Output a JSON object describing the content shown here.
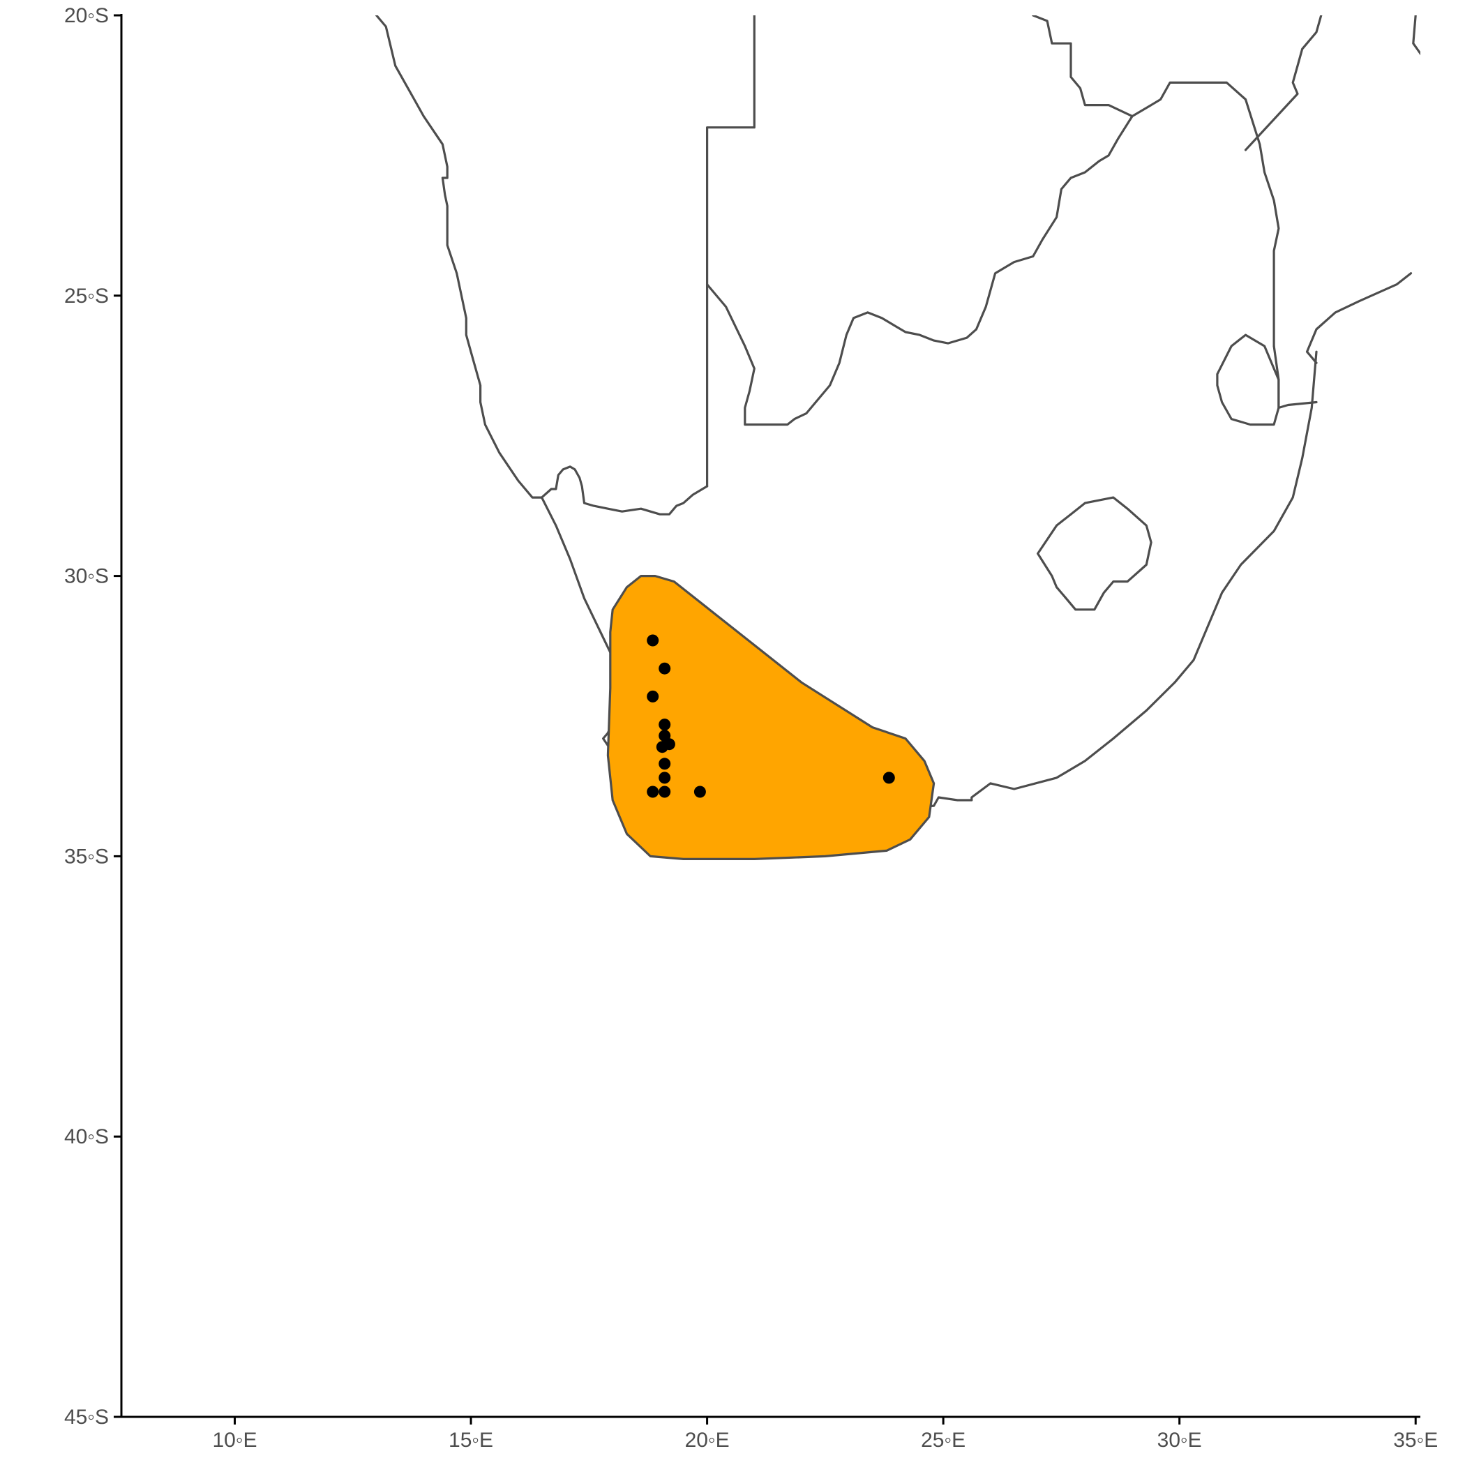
{
  "map": {
    "colors": {
      "range_fill": "#FFA500",
      "boundary": "#4d4d4d",
      "point": "#000000",
      "axis": "#000000"
    }
  },
  "x_axis": {
    "range": [
      7.6,
      35.1
    ],
    "ticks": [
      {
        "value": 10,
        "label": "10◦E"
      },
      {
        "value": 15,
        "label": "15◦E"
      },
      {
        "value": 20,
        "label": "20◦E"
      },
      {
        "value": 25,
        "label": "25◦E"
      },
      {
        "value": 30,
        "label": "30◦E"
      },
      {
        "value": 35,
        "label": "35◦E"
      }
    ]
  },
  "y_axis": {
    "range": [
      -45,
      -20
    ],
    "ticks": [
      {
        "value": -20,
        "label": "20◦S"
      },
      {
        "value": -25,
        "label": "25◦S"
      },
      {
        "value": -30,
        "label": "30◦S"
      },
      {
        "value": -35,
        "label": "35◦S"
      },
      {
        "value": -40,
        "label": "40◦S"
      },
      {
        "value": -45,
        "label": "45◦S"
      }
    ]
  },
  "chart_data": {
    "type": "scatter",
    "title": "",
    "xlabel": "",
    "ylabel": "",
    "xlim": [
      7.6,
      35.1
    ],
    "ylim": [
      -45,
      -20
    ],
    "grid": false,
    "layers": [
      "country boundaries",
      "range polygon",
      "occurrence points"
    ],
    "points": [
      {
        "lon": 18.85,
        "lat": -31.15
      },
      {
        "lon": 19.1,
        "lat": -31.65
      },
      {
        "lon": 18.85,
        "lat": -32.15
      },
      {
        "lon": 19.1,
        "lat": -32.65
      },
      {
        "lon": 19.1,
        "lat": -32.85
      },
      {
        "lon": 19.05,
        "lat": -33.05
      },
      {
        "lon": 19.2,
        "lat": -33.0
      },
      {
        "lon": 19.1,
        "lat": -33.35
      },
      {
        "lon": 19.1,
        "lat": -33.6
      },
      {
        "lon": 18.85,
        "lat": -33.85
      },
      {
        "lon": 19.1,
        "lat": -33.85
      },
      {
        "lon": 19.85,
        "lat": -33.85
      },
      {
        "lon": 23.85,
        "lat": -33.6
      }
    ],
    "range_polygon": [
      [
        18.0,
        -30.6
      ],
      [
        18.3,
        -30.2
      ],
      [
        18.6,
        -30.0
      ],
      [
        18.9,
        -30.0
      ],
      [
        19.3,
        -30.1
      ],
      [
        20.5,
        -30.9
      ],
      [
        22.0,
        -31.9
      ],
      [
        23.5,
        -32.7
      ],
      [
        24.2,
        -32.9
      ],
      [
        24.6,
        -33.3
      ],
      [
        24.8,
        -33.7
      ],
      [
        24.7,
        -34.3
      ],
      [
        24.3,
        -34.7
      ],
      [
        23.8,
        -34.9
      ],
      [
        22.5,
        -35.0
      ],
      [
        21.0,
        -35.05
      ],
      [
        19.5,
        -35.05
      ],
      [
        18.8,
        -35.0
      ],
      [
        18.3,
        -34.6
      ],
      [
        18.0,
        -34.0
      ],
      [
        17.9,
        -33.2
      ],
      [
        17.95,
        -32.0
      ],
      [
        17.95,
        -31.0
      ]
    ],
    "boundaries": [
      [
        [
          13.0,
          -20.0
        ],
        [
          13.2,
          -20.2
        ],
        [
          13.4,
          -20.9
        ],
        [
          13.8,
          -21.5
        ],
        [
          14.0,
          -21.8
        ],
        [
          14.4,
          -22.3
        ],
        [
          14.5,
          -22.7
        ],
        [
          14.5,
          -22.9
        ],
        [
          14.4,
          -22.9
        ],
        [
          14.45,
          -23.2
        ],
        [
          14.5,
          -23.4
        ],
        [
          14.5,
          -24.1
        ],
        [
          14.7,
          -24.6
        ],
        [
          14.8,
          -25.0
        ],
        [
          14.9,
          -25.4
        ],
        [
          14.9,
          -25.7
        ],
        [
          15.0,
          -26.0
        ],
        [
          15.1,
          -26.3
        ],
        [
          15.2,
          -26.6
        ],
        [
          15.2,
          -26.9
        ],
        [
          15.3,
          -27.3
        ],
        [
          15.6,
          -27.8
        ],
        [
          16.0,
          -28.3
        ],
        [
          16.3,
          -28.6
        ],
        [
          16.5,
          -28.6
        ]
      ],
      [
        [
          16.5,
          -28.6
        ],
        [
          16.8,
          -29.1
        ],
        [
          17.1,
          -29.7
        ],
        [
          17.4,
          -30.4
        ],
        [
          17.8,
          -31.1
        ],
        [
          18.2,
          -31.8
        ]
      ],
      [
        [
          16.5,
          -28.6
        ],
        [
          16.7,
          -28.45
        ],
        [
          16.8,
          -28.45
        ],
        [
          16.85,
          -28.2
        ],
        [
          16.95,
          -28.1
        ],
        [
          17.1,
          -28.05
        ],
        [
          17.2,
          -28.1
        ],
        [
          17.3,
          -28.25
        ],
        [
          17.35,
          -28.4
        ],
        [
          17.4,
          -28.7
        ],
        [
          17.6,
          -28.75
        ],
        [
          17.9,
          -28.8
        ],
        [
          18.2,
          -28.85
        ],
        [
          18.6,
          -28.8
        ],
        [
          19.0,
          -28.9
        ],
        [
          19.2,
          -28.9
        ],
        [
          19.35,
          -28.75
        ],
        [
          19.5,
          -28.7
        ],
        [
          19.7,
          -28.55
        ],
        [
          20.0,
          -28.4
        ]
      ],
      [
        [
          20.0,
          -28.4
        ],
        [
          20.0,
          -22.0
        ],
        [
          21.0,
          -22.0
        ],
        [
          21.0,
          -20.0
        ]
      ],
      [
        [
          20.0,
          -24.8
        ],
        [
          20.4,
          -25.2
        ],
        [
          20.8,
          -25.9
        ],
        [
          21.0,
          -26.3
        ],
        [
          20.9,
          -26.7
        ],
        [
          20.8,
          -27.0
        ],
        [
          20.8,
          -27.3
        ],
        [
          21.0,
          -27.3
        ],
        [
          21.4,
          -27.3
        ],
        [
          21.7,
          -27.3
        ],
        [
          21.85,
          -27.2
        ],
        [
          22.1,
          -27.1
        ],
        [
          22.3,
          -26.9
        ],
        [
          22.6,
          -26.6
        ],
        [
          22.8,
          -26.2
        ],
        [
          22.95,
          -25.7
        ],
        [
          23.1,
          -25.4
        ],
        [
          23.4,
          -25.3
        ],
        [
          23.7,
          -25.4
        ],
        [
          24.0,
          -25.55
        ],
        [
          24.2,
          -25.65
        ],
        [
          24.5,
          -25.7
        ],
        [
          24.8,
          -25.8
        ],
        [
          25.1,
          -25.85
        ],
        [
          25.5,
          -25.75
        ],
        [
          25.7,
          -25.6
        ],
        [
          25.9,
          -25.2
        ],
        [
          26.1,
          -24.6
        ],
        [
          26.5,
          -24.4
        ],
        [
          26.9,
          -24.3
        ],
        [
          27.1,
          -24.0
        ],
        [
          27.4,
          -23.6
        ],
        [
          27.5,
          -23.1
        ],
        [
          27.7,
          -22.9
        ],
        [
          28.0,
          -22.8
        ],
        [
          28.3,
          -22.6
        ],
        [
          28.5,
          -22.5
        ],
        [
          28.7,
          -22.2
        ],
        [
          29.0,
          -21.8
        ],
        [
          29.4,
          -21.6
        ],
        [
          29.6,
          -21.5
        ],
        [
          29.8,
          -21.2
        ],
        [
          30.2,
          -21.2
        ],
        [
          30.6,
          -21.2
        ],
        [
          31.0,
          -21.2
        ],
        [
          31.4,
          -21.5
        ],
        [
          31.7,
          -22.3
        ],
        [
          31.8,
          -22.8
        ],
        [
          32.0,
          -23.3
        ],
        [
          32.1,
          -23.8
        ],
        [
          32.0,
          -24.2
        ],
        [
          32.0,
          -25.0
        ],
        [
          32.0,
          -25.9
        ]
      ],
      [
        [
          32.0,
          -25.9
        ],
        [
          32.1,
          -26.5
        ],
        [
          32.1,
          -27.0
        ],
        [
          32.3,
          -26.95
        ],
        [
          32.9,
          -26.9
        ]
      ],
      [
        [
          32.9,
          -26.0
        ],
        [
          32.8,
          -27.0
        ],
        [
          32.6,
          -27.9
        ],
        [
          32.4,
          -28.6
        ],
        [
          32.0,
          -29.2
        ],
        [
          31.3,
          -29.8
        ],
        [
          30.9,
          -30.3
        ],
        [
          30.6,
          -30.9
        ],
        [
          30.3,
          -31.5
        ],
        [
          29.9,
          -31.9
        ],
        [
          29.3,
          -32.4
        ],
        [
          28.6,
          -32.9
        ],
        [
          28.0,
          -33.3
        ],
        [
          27.4,
          -33.6
        ],
        [
          26.5,
          -33.8
        ],
        [
          26.0,
          -33.7
        ],
        [
          25.6,
          -33.95
        ],
        [
          25.6,
          -34.0
        ],
        [
          25.3,
          -34.0
        ],
        [
          24.9,
          -33.95
        ],
        [
          24.8,
          -34.1
        ],
        [
          24.0,
          -34.15
        ],
        [
          23.4,
          -34.1
        ],
        [
          22.5,
          -34.1
        ],
        [
          21.8,
          -34.3
        ],
        [
          21.0,
          -34.4
        ],
        [
          20.0,
          -34.85
        ],
        [
          19.5,
          -34.6
        ],
        [
          19.2,
          -34.4
        ],
        [
          18.8,
          -34.1
        ],
        [
          18.5,
          -33.9
        ],
        [
          18.4,
          -34.1
        ],
        [
          18.3,
          -33.8
        ],
        [
          18.2,
          -33.4
        ],
        [
          17.8,
          -32.9
        ],
        [
          17.9,
          -32.8
        ],
        [
          18.1,
          -32.4
        ],
        [
          18.3,
          -32.0
        ],
        [
          18.2,
          -31.8
        ]
      ],
      [
        [
          27.0,
          -29.6
        ],
        [
          27.4,
          -29.1
        ],
        [
          27.7,
          -28.9
        ],
        [
          28.0,
          -28.7
        ],
        [
          28.6,
          -28.6
        ],
        [
          28.9,
          -28.8
        ],
        [
          29.3,
          -29.1
        ],
        [
          29.4,
          -29.4
        ],
        [
          29.3,
          -29.8
        ],
        [
          28.9,
          -30.1
        ],
        [
          28.6,
          -30.1
        ],
        [
          28.4,
          -30.3
        ],
        [
          28.2,
          -30.6
        ],
        [
          27.8,
          -30.6
        ],
        [
          27.6,
          -30.4
        ],
        [
          27.4,
          -30.2
        ],
        [
          27.3,
          -30.0
        ],
        [
          27.0,
          -29.6
        ]
      ],
      [
        [
          30.8,
          -26.4
        ],
        [
          31.1,
          -25.9
        ],
        [
          31.4,
          -25.7
        ],
        [
          31.8,
          -25.9
        ],
        [
          32.0,
          -26.3
        ],
        [
          32.1,
          -26.5
        ],
        [
          32.1,
          -27.0
        ],
        [
          32.0,
          -27.3
        ],
        [
          31.5,
          -27.3
        ],
        [
          31.1,
          -27.2
        ],
        [
          30.9,
          -26.9
        ],
        [
          30.8,
          -26.6
        ],
        [
          30.8,
          -26.4
        ]
      ],
      [
        [
          34.9,
          -24.6
        ],
        [
          34.6,
          -24.8
        ],
        [
          33.8,
          -25.1
        ],
        [
          33.3,
          -25.3
        ],
        [
          32.9,
          -25.6
        ],
        [
          32.7,
          -26.0
        ],
        [
          32.9,
          -26.2
        ]
      ],
      [
        [
          33.0,
          -20.0
        ],
        [
          32.9,
          -20.3
        ],
        [
          32.6,
          -20.6
        ],
        [
          32.5,
          -20.9
        ],
        [
          32.4,
          -21.2
        ],
        [
          32.5,
          -21.4
        ],
        [
          31.4,
          -22.4
        ]
      ],
      [
        [
          35.0,
          -20.0
        ],
        [
          34.95,
          -20.5
        ],
        [
          35.2,
          -20.8
        ],
        [
          35.35,
          -21.3
        ]
      ],
      [
        [
          26.9,
          -20.0
        ],
        [
          27.2,
          -20.1
        ],
        [
          27.3,
          -20.5
        ],
        [
          27.7,
          -20.5
        ],
        [
          27.7,
          -21.1
        ],
        [
          27.9,
          -21.3
        ],
        [
          28.0,
          -21.6
        ],
        [
          28.5,
          -21.6
        ],
        [
          29.0,
          -21.8
        ]
      ]
    ]
  }
}
